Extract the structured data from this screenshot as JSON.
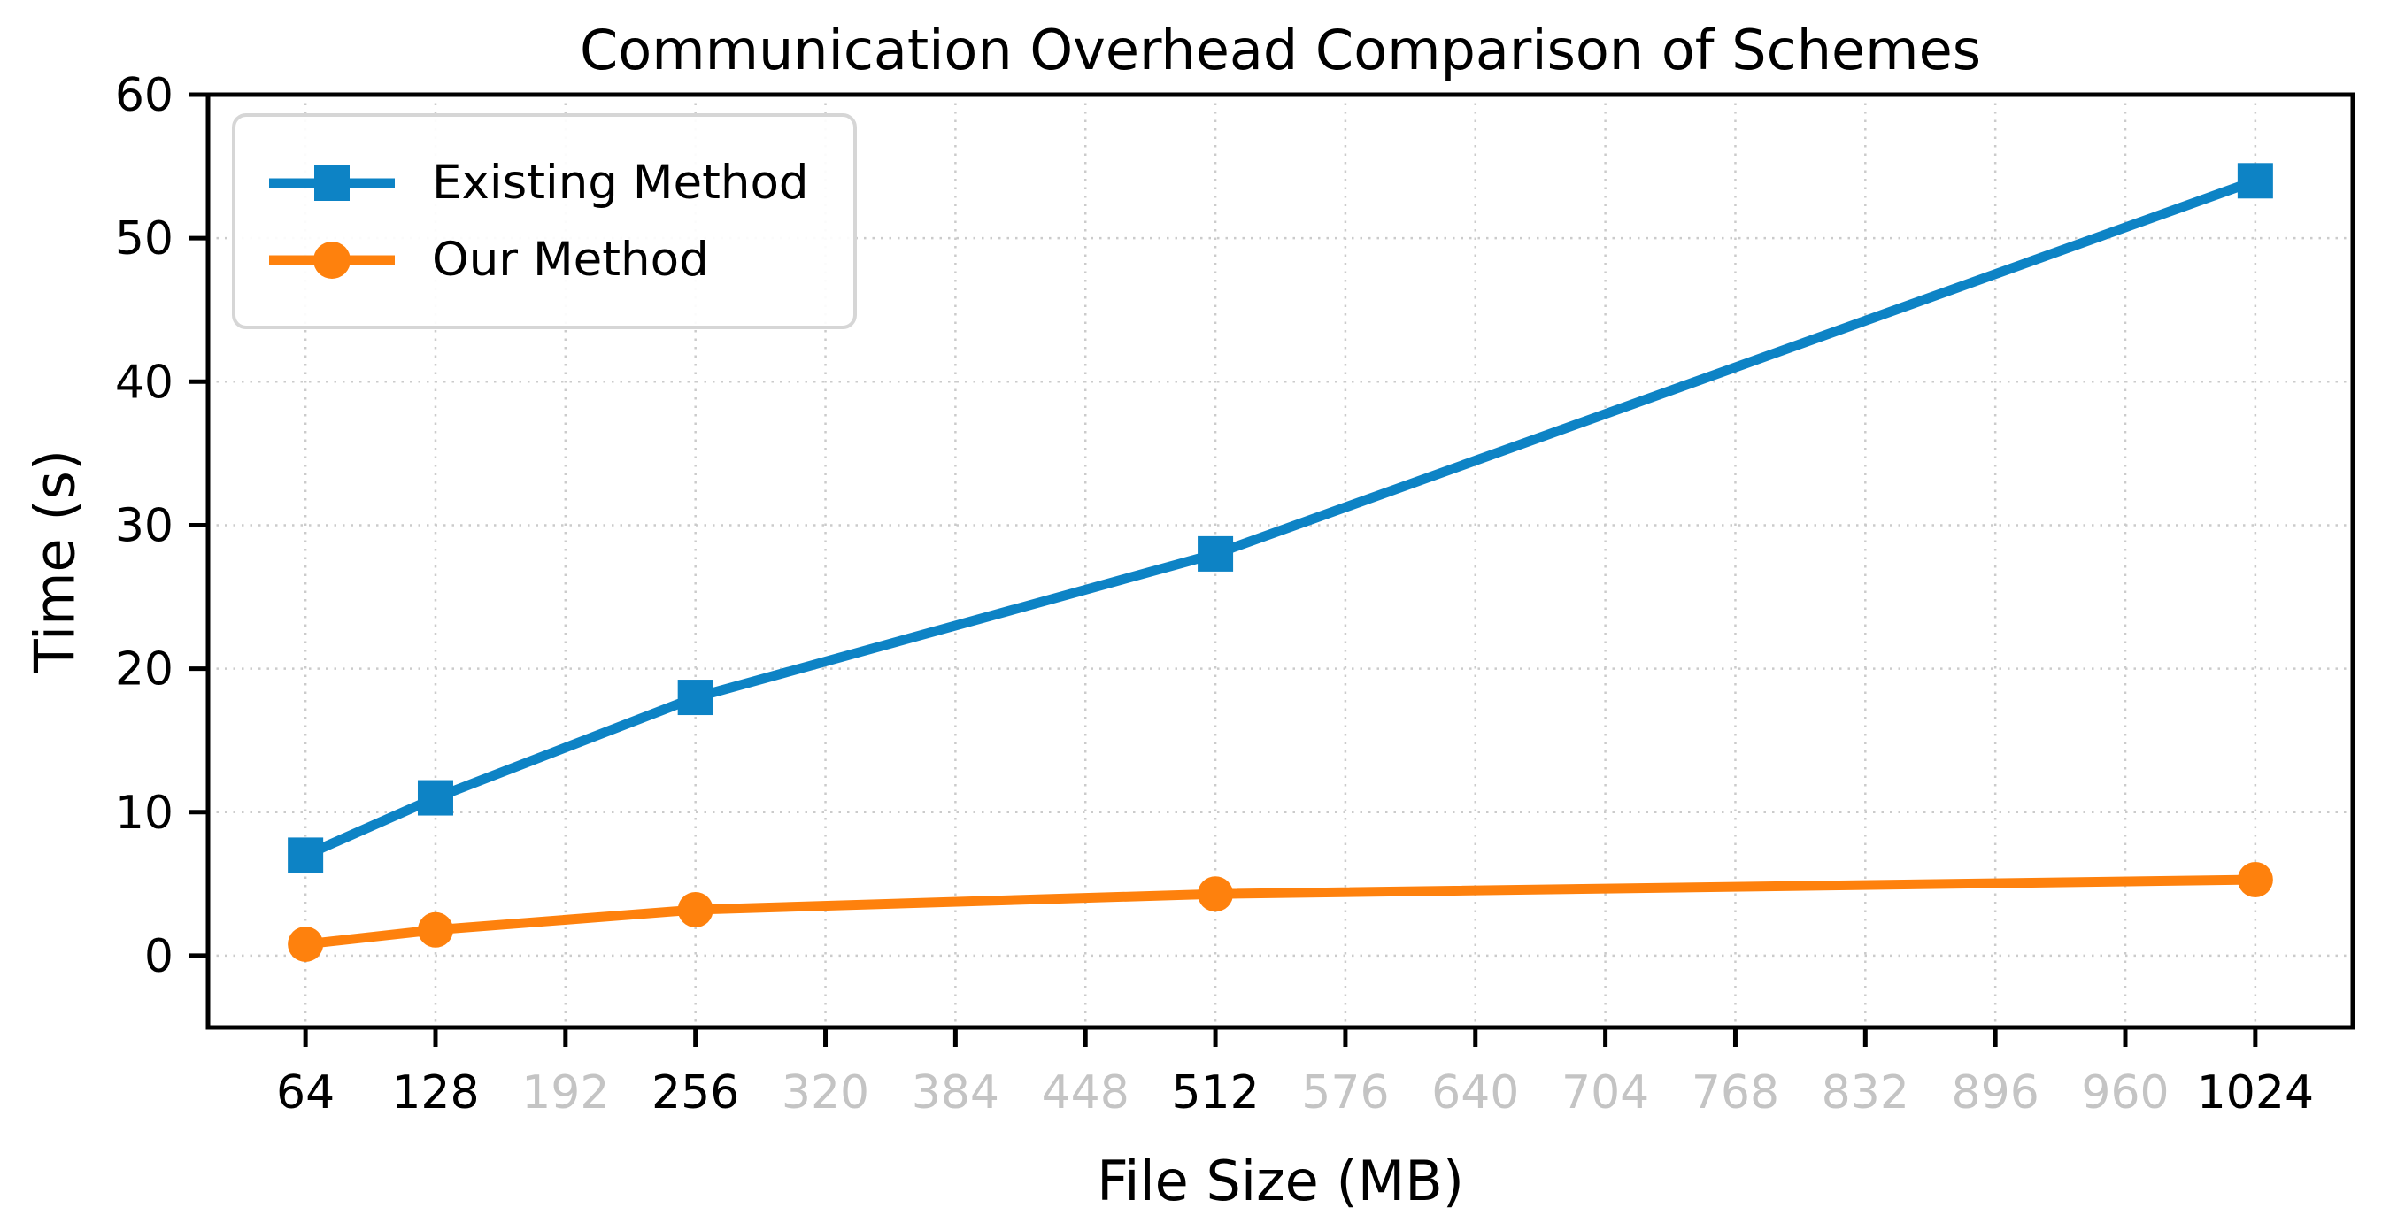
{
  "chart_data": {
    "type": "line",
    "title": "Communication Overhead Comparison of Schemes",
    "xlabel": "File Size (MB)",
    "ylabel": "Time (s)",
    "x": [
      64,
      128,
      256,
      512,
      1024
    ],
    "series": [
      {
        "name": "Existing Method",
        "marker": "square",
        "color": "#0d83c5",
        "values": [
          7,
          11,
          18,
          28,
          54
        ]
      },
      {
        "name": "Our Method",
        "marker": "circle",
        "color": "#fe810d",
        "values": [
          0.8,
          1.8,
          3.2,
          4.3,
          5.3
        ]
      }
    ],
    "xticks": [
      {
        "value": 64,
        "muted": false
      },
      {
        "value": 128,
        "muted": false
      },
      {
        "value": 192,
        "muted": true
      },
      {
        "value": 256,
        "muted": false
      },
      {
        "value": 320,
        "muted": true
      },
      {
        "value": 384,
        "muted": true
      },
      {
        "value": 448,
        "muted": true
      },
      {
        "value": 512,
        "muted": false
      },
      {
        "value": 576,
        "muted": true
      },
      {
        "value": 640,
        "muted": true
      },
      {
        "value": 704,
        "muted": true
      },
      {
        "value": 768,
        "muted": true
      },
      {
        "value": 832,
        "muted": true
      },
      {
        "value": 896,
        "muted": true
      },
      {
        "value": 960,
        "muted": true
      },
      {
        "value": 1024,
        "muted": false
      }
    ],
    "yticks": [
      0,
      10,
      20,
      30,
      40,
      50,
      60
    ],
    "xlim": [
      16,
      1072
    ],
    "ylim": [
      -5,
      60
    ],
    "grid": true,
    "legend_position": "upper left",
    "colors": {
      "spine": "#000000",
      "tick_label": "#000000",
      "tick_label_muted": "#c4c4c4",
      "gridline": "#cbcbcb",
      "background": "#ffffff"
    }
  }
}
